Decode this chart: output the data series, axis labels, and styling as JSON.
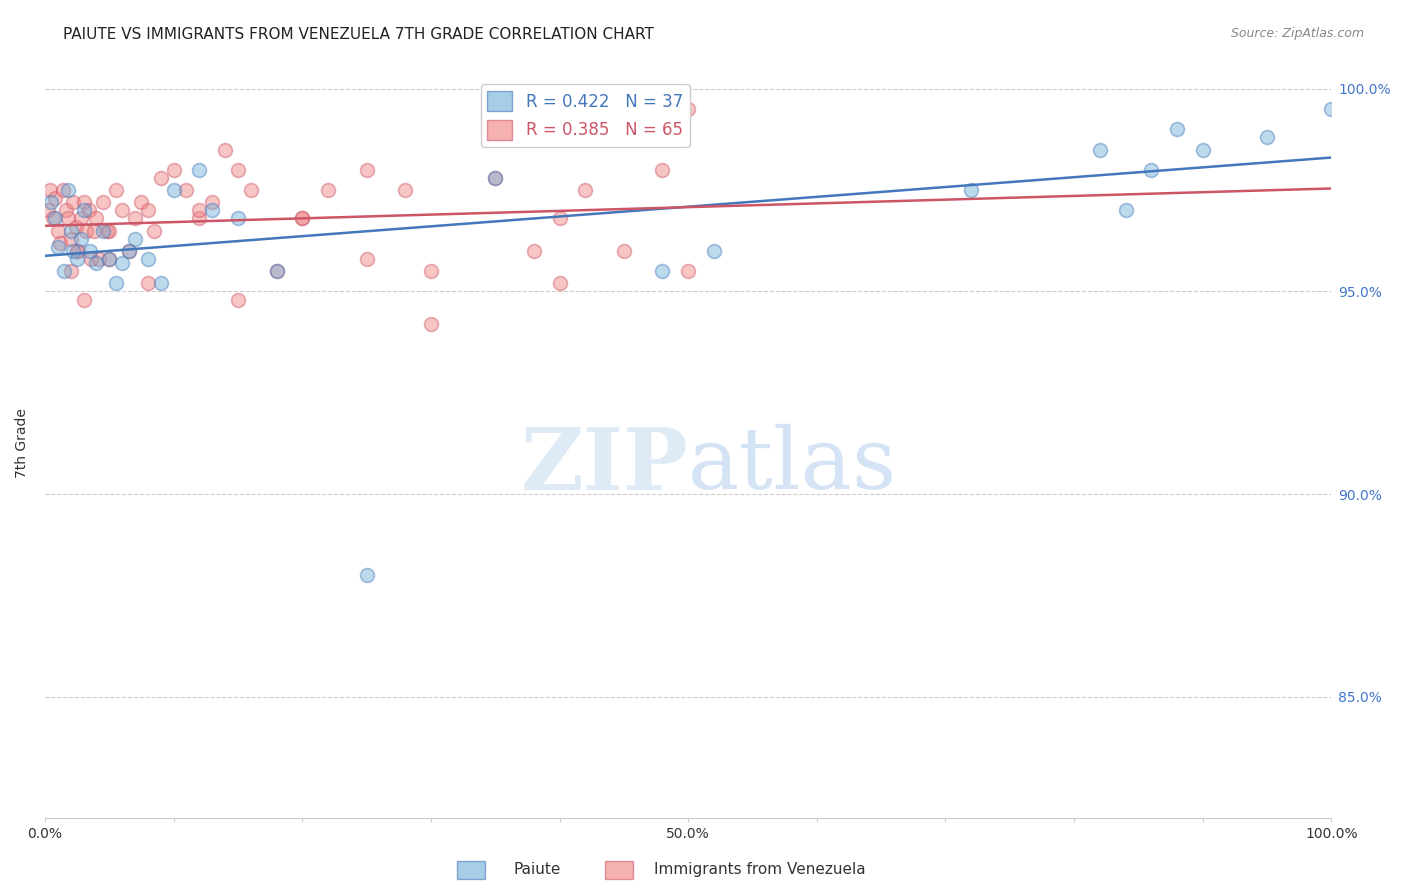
{
  "title": "PAIUTE VS IMMIGRANTS FROM VENEZUELA 7TH GRADE CORRELATION CHART",
  "source": "Source: ZipAtlas.com",
  "ylabel": "7th Grade",
  "r_paiute": 0.422,
  "n_paiute": 37,
  "r_venezuela": 0.385,
  "n_venezuela": 65,
  "color_paiute": "#6baed6",
  "color_venezuela": "#f08080",
  "color_paiute_line": "#4477bb",
  "color_venezuela_line": "#cc5566",
  "color_yticks": "#4477cc",
  "xlim": [
    0.0,
    1.0
  ],
  "ylim": [
    0.82,
    1.005
  ],
  "ytick_values": [
    0.85,
    0.9,
    0.95,
    1.0
  ],
  "ytick_labels": [
    "85.0%",
    "90.0%",
    "95.0%",
    "100.0%"
  ],
  "xtick_values": [
    0.0,
    0.1,
    0.2,
    0.3,
    0.4,
    0.5,
    0.6,
    0.7,
    0.8,
    0.9,
    1.0
  ],
  "xtick_labels": [
    "0.0%",
    "",
    "",
    "",
    "",
    "50.0%",
    "",
    "",
    "",
    "",
    "100.0%"
  ],
  "paiute_x": [
    0.005,
    0.008,
    0.01,
    0.015,
    0.018,
    0.02,
    0.022,
    0.025,
    0.028,
    0.03,
    0.035,
    0.04,
    0.045,
    0.05,
    0.055,
    0.06,
    0.065,
    0.07,
    0.08,
    0.09,
    0.1,
    0.12,
    0.13,
    0.15,
    0.18,
    0.25,
    0.35,
    0.48,
    0.52,
    0.72,
    0.82,
    0.84,
    0.86,
    0.88,
    0.9,
    0.95,
    1.0
  ],
  "paiute_y": [
    0.972,
    0.968,
    0.961,
    0.955,
    0.975,
    0.965,
    0.96,
    0.958,
    0.963,
    0.97,
    0.96,
    0.957,
    0.965,
    0.958,
    0.952,
    0.957,
    0.96,
    0.963,
    0.958,
    0.952,
    0.975,
    0.98,
    0.97,
    0.968,
    0.955,
    0.88,
    0.978,
    0.955,
    0.96,
    0.975,
    0.985,
    0.97,
    0.98,
    0.99,
    0.985,
    0.988,
    0.995
  ],
  "venezuela_x": [
    0.002,
    0.004,
    0.006,
    0.008,
    0.01,
    0.012,
    0.014,
    0.016,
    0.018,
    0.02,
    0.022,
    0.024,
    0.026,
    0.028,
    0.03,
    0.032,
    0.034,
    0.036,
    0.038,
    0.04,
    0.042,
    0.045,
    0.048,
    0.05,
    0.055,
    0.06,
    0.065,
    0.07,
    0.075,
    0.08,
    0.085,
    0.09,
    0.1,
    0.11,
    0.12,
    0.13,
    0.14,
    0.15,
    0.16,
    0.18,
    0.2,
    0.22,
    0.25,
    0.28,
    0.3,
    0.35,
    0.38,
    0.4,
    0.42,
    0.45,
    0.48,
    0.5,
    0.02,
    0.025,
    0.03,
    0.05,
    0.08,
    0.12,
    0.15,
    0.2,
    0.25,
    0.3,
    0.4,
    0.45,
    0.5
  ],
  "venezuela_y": [
    0.97,
    0.975,
    0.968,
    0.973,
    0.965,
    0.962,
    0.975,
    0.97,
    0.968,
    0.963,
    0.972,
    0.966,
    0.96,
    0.968,
    0.972,
    0.965,
    0.97,
    0.958,
    0.965,
    0.968,
    0.958,
    0.972,
    0.965,
    0.965,
    0.975,
    0.97,
    0.96,
    0.968,
    0.972,
    0.97,
    0.965,
    0.978,
    0.98,
    0.975,
    0.968,
    0.972,
    0.985,
    0.98,
    0.975,
    0.955,
    0.968,
    0.975,
    0.98,
    0.975,
    0.942,
    0.978,
    0.96,
    0.968,
    0.975,
    0.99,
    0.98,
    0.995,
    0.955,
    0.96,
    0.948,
    0.958,
    0.952,
    0.97,
    0.948,
    0.968,
    0.958,
    0.955,
    0.952,
    0.96,
    0.955
  ],
  "watermark_zip": "ZIP",
  "watermark_atlas": "atlas",
  "background_color": "#ffffff",
  "grid_color": "#cccccc",
  "title_fontsize": 11,
  "axis_label_fontsize": 10,
  "tick_fontsize": 10,
  "marker_size": 100,
  "marker_alpha": 0.45,
  "line_width": 1.8
}
